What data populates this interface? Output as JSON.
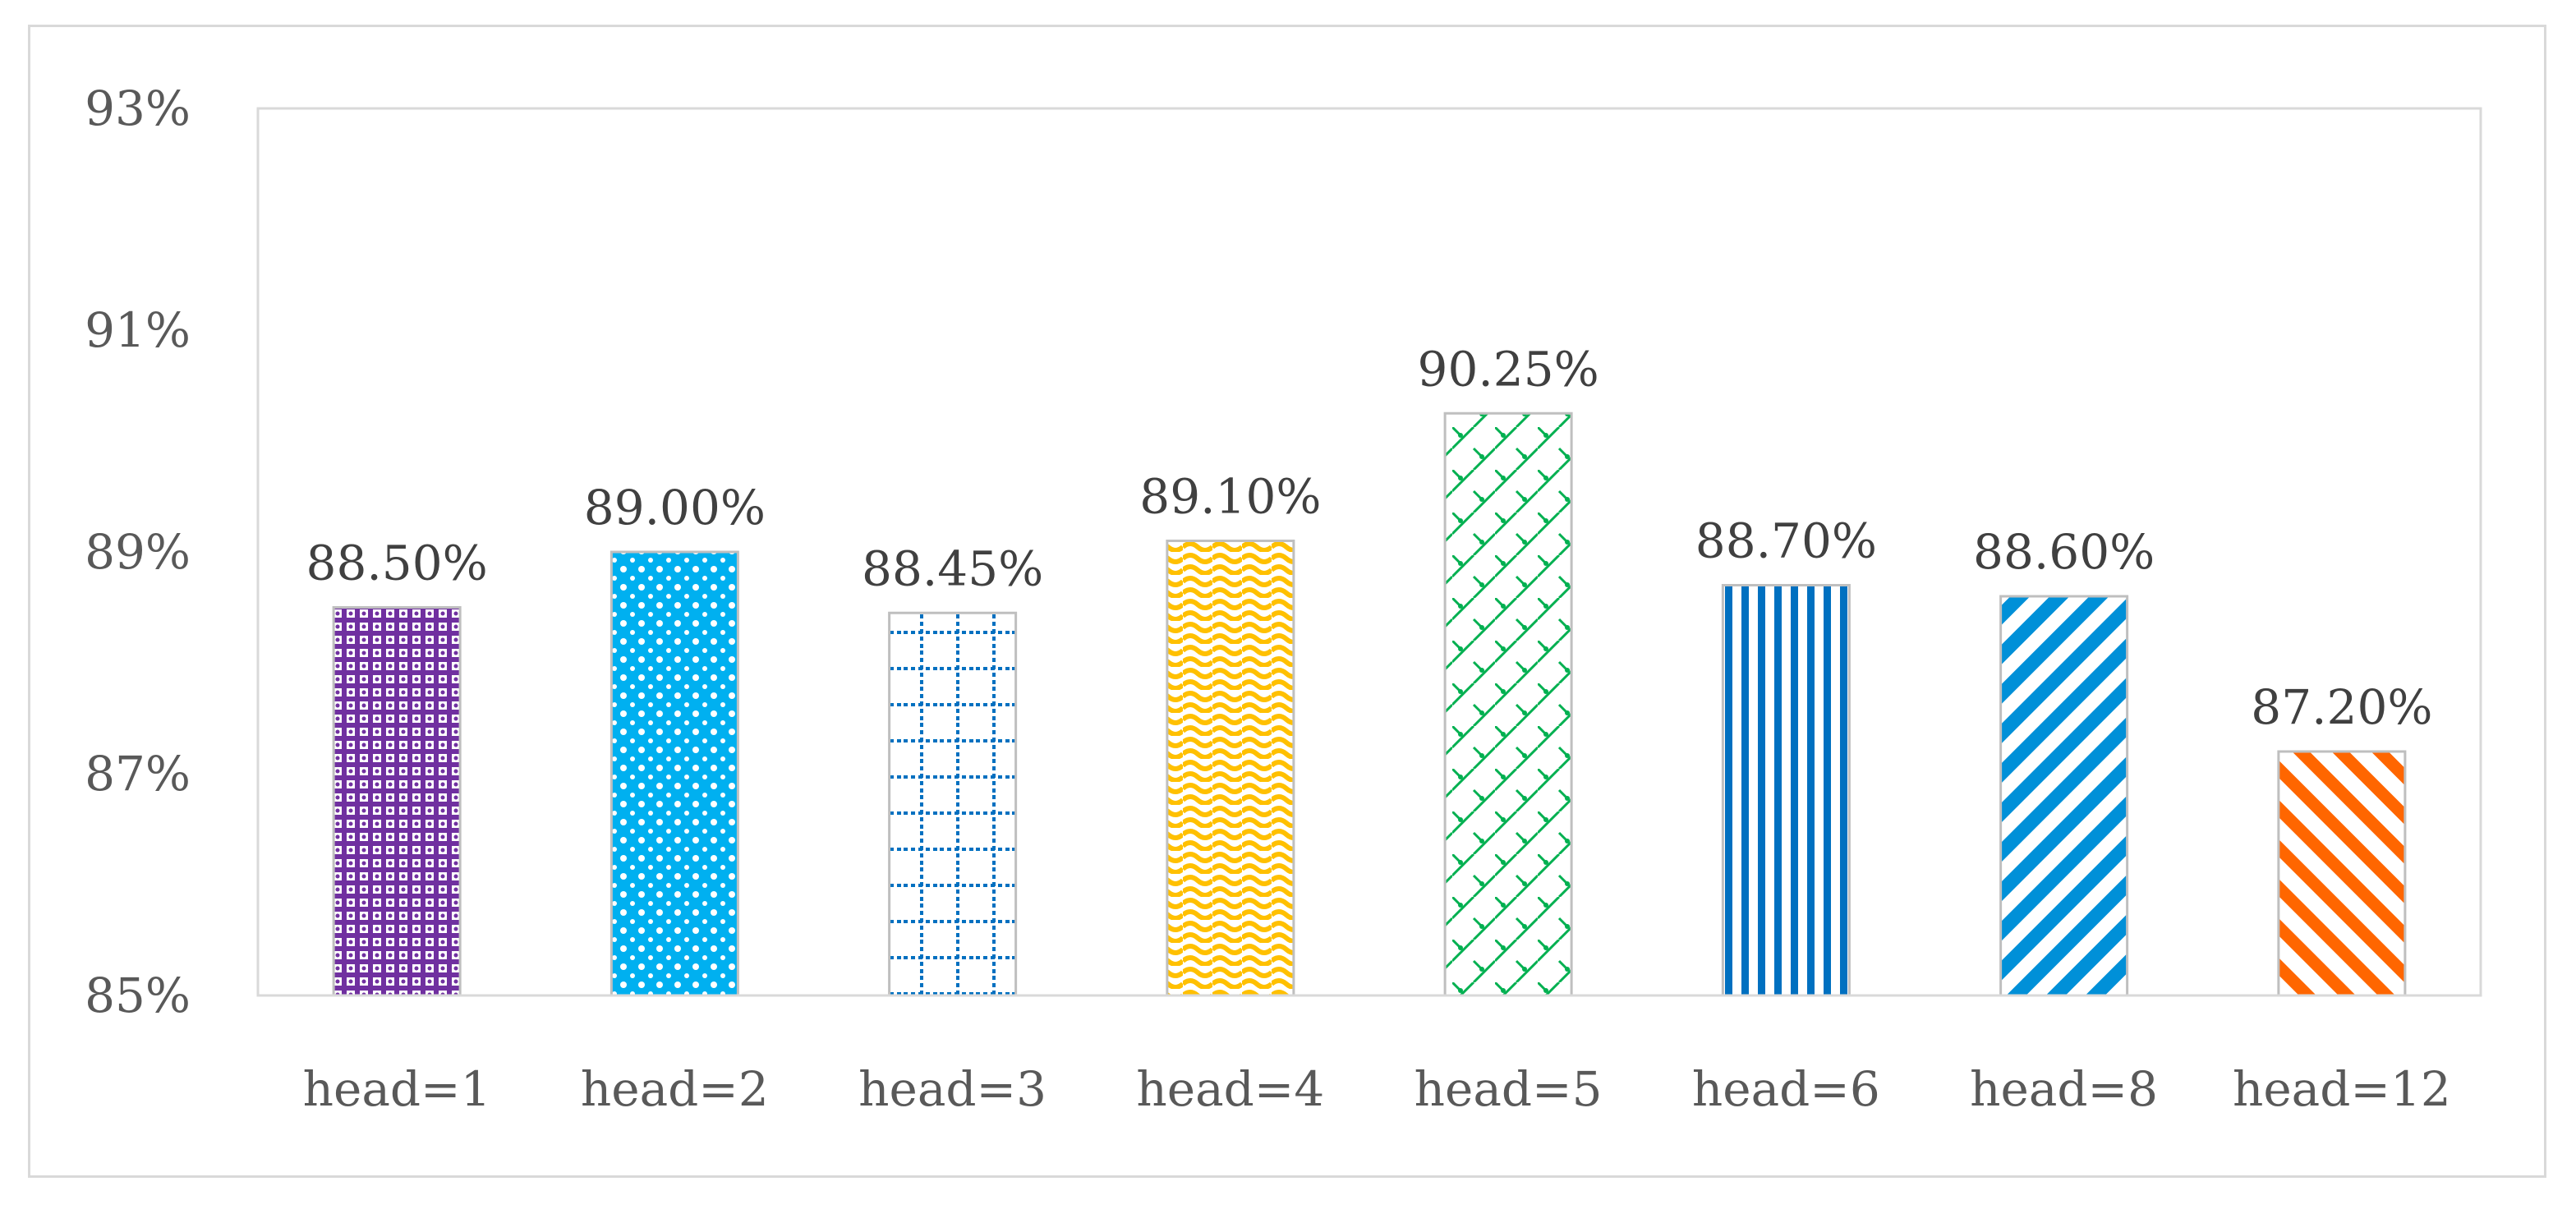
{
  "chart_data": {
    "type": "bar",
    "title": "",
    "xlabel": "",
    "ylabel": "",
    "categories": [
      "head=1",
      "head=2",
      "head=3",
      "head=4",
      "head=5",
      "head=6",
      "head=8",
      "head=12"
    ],
    "values": [
      88.5,
      89.0,
      88.45,
      89.1,
      90.25,
      88.7,
      88.6,
      87.2
    ],
    "data_labels": [
      "88.50%",
      "89.00%",
      "88.45%",
      "89.10%",
      "90.25%",
      "88.70%",
      "88.60%",
      "87.20%"
    ],
    "ylim": [
      85,
      93
    ],
    "yticks": [
      85,
      87,
      89,
      91,
      93
    ],
    "ytick_labels": [
      "85%",
      "87%",
      "89%",
      "91%",
      "93%"
    ],
    "grid": false,
    "legend": "none",
    "bar_colors": [
      "#7030a0",
      "#00b0f0",
      "#0070c0",
      "#ffc000",
      "#00b050",
      "#0070c0",
      "#0090d8",
      "#ff6600"
    ],
    "bar_patterns": [
      "dotted-grid",
      "diamond-lattice",
      "dashed-grid",
      "wave",
      "zigzag-lattice",
      "vertical-stripes",
      "diagonal-down",
      "diagonal-up"
    ]
  }
}
